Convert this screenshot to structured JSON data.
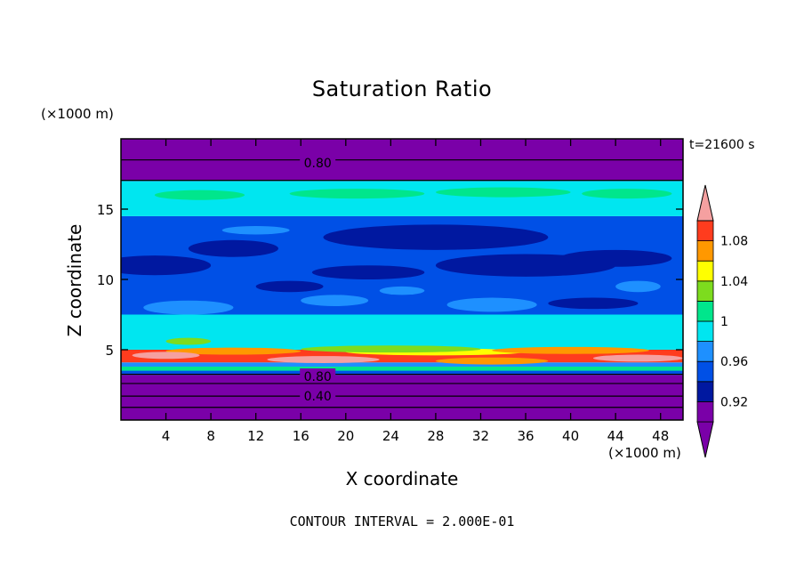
{
  "chart_data": {
    "type": "heatmap",
    "title": "Saturation Ratio",
    "xlabel": "X coordinate",
    "ylabel": "Z coordinate",
    "x_unit": "(×1000 m)",
    "y_unit": "(×1000 m)",
    "time_label": "t=21600 s",
    "footer": "CONTOUR INTERVAL = 2.000E-01",
    "xlim": [
      0,
      50
    ],
    "ylim": [
      0,
      20
    ],
    "x_ticks": [
      4,
      8,
      12,
      16,
      20,
      24,
      28,
      32,
      36,
      40,
      44,
      48
    ],
    "y_ticks": [
      5,
      10,
      15
    ],
    "contour_labels": [
      {
        "text": "0.80",
        "x": 17.5,
        "z": 18.3
      },
      {
        "text": "0.80",
        "x": 17.5,
        "z": 3.1
      },
      {
        "text": "0.40",
        "x": 17.5,
        "z": 1.7
      }
    ],
    "colorbar": {
      "labels": [
        "0.92",
        "0.96",
        "1",
        "1.04",
        "1.08"
      ],
      "levels": [
        0.9,
        0.92,
        0.94,
        0.96,
        0.98,
        1.0,
        1.02,
        1.04,
        1.06,
        1.08,
        1.1
      ],
      "colors": [
        "#7a00a8",
        "#0018a0",
        "#0050e6",
        "#1e90ff",
        "#00e6f0",
        "#00e68c",
        "#7ddc1e",
        "#ffff00",
        "#ff9800",
        "#ff3c1e",
        "#f5a0a0"
      ]
    },
    "layers": [
      {
        "z": [
          0.0,
          3.2
        ],
        "value": "< 0.90",
        "color": "#7a00a8"
      },
      {
        "z": [
          3.2,
          4.1
        ],
        "value": "0.94-0.98",
        "color": "#1e90ff"
      },
      {
        "z": [
          4.1,
          5.0
        ],
        "value": "1.04-1.10",
        "color": "#ff3c1e"
      },
      {
        "z": [
          5.0,
          7.5
        ],
        "value": "0.96-0.98",
        "color": "#00e6f0"
      },
      {
        "z": [
          7.5,
          14.5
        ],
        "value": "0.92-0.96",
        "color": "#0050e6"
      },
      {
        "z": [
          14.5,
          17.0
        ],
        "value": "0.96-1.00",
        "color": "#00e6f0"
      },
      {
        "z": [
          17.0,
          20.0
        ],
        "value": "< 0.90",
        "color": "#7a00a8"
      }
    ]
  }
}
